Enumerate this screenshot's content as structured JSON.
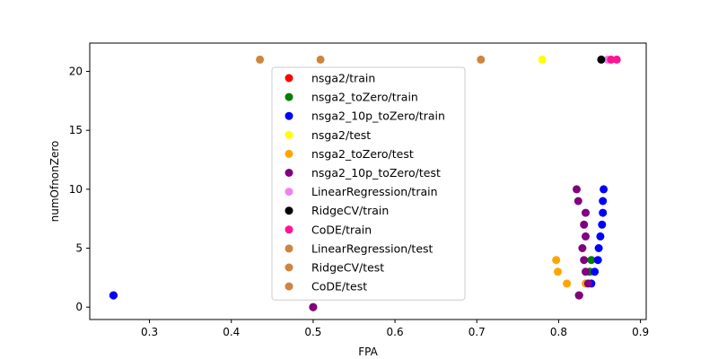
{
  "chart_data": {
    "type": "scatter",
    "title": "",
    "xlabel": "FPA",
    "ylabel": "numOfnonZero",
    "xlim": [
      0.227,
      0.907
    ],
    "ylim": [
      -1.05,
      22.4
    ],
    "xticks": [
      0.3,
      0.4,
      0.5,
      0.6,
      0.7,
      0.8,
      0.9
    ],
    "yticks": [
      0,
      5,
      10,
      15,
      20
    ],
    "grid": false,
    "legend_position": "upper center",
    "series": [
      {
        "name": "nsga2/train",
        "color": "#ff0000",
        "points": [
          [
            0.256,
            1
          ],
          [
            0.825,
            1
          ]
        ]
      },
      {
        "name": "nsga2_toZero/train",
        "color": "#008000",
        "points": [
          [
            0.256,
            1
          ],
          [
            0.838,
            3
          ],
          [
            0.84,
            4
          ],
          [
            0.825,
            1
          ],
          [
            0.5,
            0
          ]
        ]
      },
      {
        "name": "nsga2_10p_toZero/train",
        "color": "#0000ff",
        "points": [
          [
            0.256,
            1
          ],
          [
            0.5,
            0
          ],
          [
            0.825,
            1
          ],
          [
            0.84,
            2
          ],
          [
            0.844,
            3
          ],
          [
            0.848,
            4
          ],
          [
            0.849,
            5
          ],
          [
            0.851,
            6
          ],
          [
            0.853,
            7
          ],
          [
            0.854,
            8
          ],
          [
            0.854,
            9
          ],
          [
            0.855,
            10
          ]
        ]
      },
      {
        "name": "nsga2/test",
        "color": "#ffff00",
        "points": [
          [
            0.5,
            0
          ],
          [
            0.78,
            21
          ]
        ]
      },
      {
        "name": "nsga2_toZero/test",
        "color": "#ffa500",
        "points": [
          [
            0.5,
            0
          ],
          [
            0.797,
            4
          ],
          [
            0.799,
            3
          ],
          [
            0.81,
            2
          ],
          [
            0.825,
            1
          ],
          [
            0.833,
            2
          ]
        ]
      },
      {
        "name": "nsga2_10p_toZero/test",
        "color": "#800080",
        "points": [
          [
            0.5,
            0
          ],
          [
            0.825,
            1
          ],
          [
            0.836,
            2
          ],
          [
            0.833,
            3
          ],
          [
            0.831,
            4
          ],
          [
            0.829,
            5
          ],
          [
            0.833,
            6
          ],
          [
            0.831,
            7
          ],
          [
            0.833,
            8
          ],
          [
            0.824,
            9
          ],
          [
            0.822,
            10
          ]
        ]
      },
      {
        "name": "LinearRegression/train",
        "color": "#ee82ee",
        "points": [
          [
            0.86,
            21
          ]
        ]
      },
      {
        "name": "RidgeCV/train",
        "color": "#000000",
        "points": [
          [
            0.852,
            21
          ]
        ]
      },
      {
        "name": "CoDE/train",
        "color": "#ff1493",
        "points": [
          [
            0.864,
            21
          ],
          [
            0.871,
            21
          ]
        ]
      },
      {
        "name": "LinearRegression/test",
        "color": "#cd853f",
        "points": [
          [
            0.435,
            21
          ]
        ]
      },
      {
        "name": "RidgeCV/test",
        "color": "#cd853f",
        "points": [
          [
            0.509,
            21
          ]
        ]
      },
      {
        "name": "CoDE/test",
        "color": "#cd853f",
        "points": [
          [
            0.705,
            21
          ]
        ]
      }
    ]
  }
}
